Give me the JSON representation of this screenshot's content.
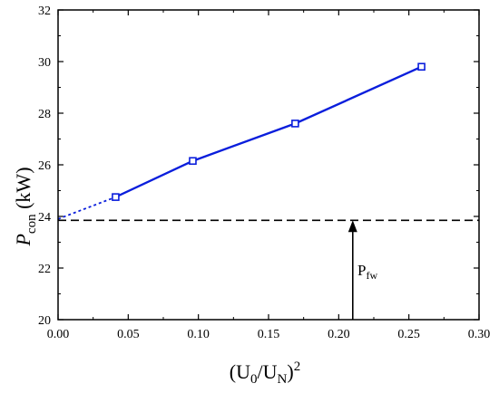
{
  "chart_data": {
    "type": "line",
    "xlabel": {
      "main_1": "(U",
      "sub_1": "0",
      "slash": "/U",
      "sub_2": "N",
      "close": ")",
      "sup": "2"
    },
    "ylabel": {
      "main": "P",
      "sub": "con",
      "unit": " (kW)"
    },
    "xlim": [
      0.0,
      0.3
    ],
    "ylim": [
      20,
      32
    ],
    "xticks": [
      0.0,
      0.05,
      0.1,
      0.15,
      0.2,
      0.25,
      0.3
    ],
    "yticks": [
      20,
      22,
      24,
      26,
      28,
      30,
      32
    ],
    "xtick_labels": [
      "0.00",
      "0.05",
      "0.10",
      "0.15",
      "0.20",
      "0.25",
      "0.30"
    ],
    "ytick_labels": [
      "20",
      "22",
      "24",
      "26",
      "28",
      "30",
      "32"
    ],
    "series": [
      {
        "type": "line",
        "marker": "square",
        "x": [
          0.041,
          0.096,
          0.169,
          0.259
        ],
        "y": [
          24.75,
          26.15,
          27.6,
          29.8
        ]
      }
    ],
    "extrapolation": {
      "x": [
        0.0,
        0.041
      ],
      "y": [
        23.9,
        24.75
      ],
      "style": "dotted"
    },
    "reference_line": {
      "y": 23.85,
      "style": "dashed"
    },
    "annotation": {
      "text_main": "P",
      "text_sub": "fw",
      "arrow_x": 0.21,
      "arrow_from_y": 20,
      "arrow_to_y": 23.85
    },
    "grid": false,
    "colors": {
      "series": "#0a1edc",
      "axes": "#000000"
    }
  }
}
